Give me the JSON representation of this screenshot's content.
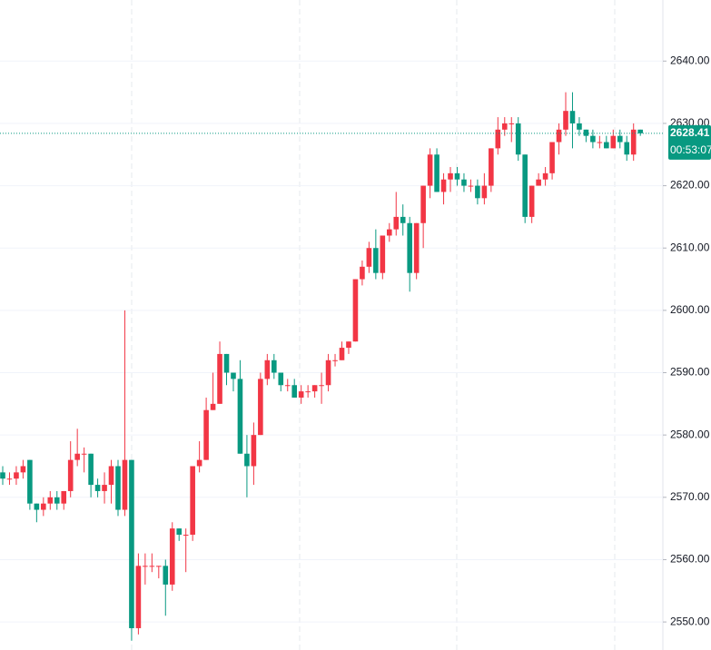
{
  "chart_data": {
    "type": "candlestick",
    "up_color": "#f23645",
    "down_color": "#089981",
    "ylim": [
      2545.5,
      2649.8
    ],
    "yticks": [
      {
        "value": 2550,
        "label": "2550.00"
      },
      {
        "value": 2560,
        "label": "2560.00"
      },
      {
        "value": 2570,
        "label": "2570.00"
      },
      {
        "value": 2580,
        "label": "2580.00"
      },
      {
        "value": 2590,
        "label": "2590.00"
      },
      {
        "value": 2600,
        "label": "2600.00"
      },
      {
        "value": 2610,
        "label": "2610.00"
      },
      {
        "value": 2620,
        "label": "2620.00"
      },
      {
        "value": 2630,
        "label": "2630.00"
      },
      {
        "value": 2640,
        "label": "2640.00"
      }
    ],
    "grid": true,
    "last_price": 2628.41,
    "countdown": "00:53:07",
    "open": [
      2574,
      2573,
      2573,
      2574,
      2576,
      2569,
      2568,
      2569,
      2570,
      2569,
      2571,
      2576,
      2577,
      2577,
      2572,
      2571,
      2572,
      2575,
      2568,
      2576,
      2549,
      2559,
      2559,
      2559,
      2559,
      2556,
      2565,
      2564,
      2564,
      2575,
      2576,
      2584,
      2585,
      2593,
      2590,
      2589,
      2577,
      2575,
      2580,
      2589,
      2592,
      2590,
      2588,
      2588,
      2586,
      2587,
      2587,
      2588,
      2588,
      2592,
      2592,
      2594,
      2595,
      2605,
      2607,
      2610,
      2606,
      2612,
      2613,
      2615,
      2614,
      2606,
      2614,
      2620,
      2625,
      2619,
      2621,
      2622,
      2621,
      2620,
      2620,
      2618,
      2620,
      2626,
      2629,
      2630,
      2630,
      2625,
      2615,
      2620,
      2621,
      2622,
      2627,
      2629,
      2632,
      2630,
      2629,
      2628,
      2627,
      2627,
      2626,
      2628,
      2627,
      2625,
      2629
    ],
    "high": [
      2575,
      2574,
      2575,
      2576,
      2576,
      2569,
      2570,
      2571,
      2571,
      2571,
      2579,
      2581,
      2578,
      2577,
      2573,
      2574,
      2576,
      2576,
      2600,
      2576,
      2561,
      2561,
      2561,
      2559,
      2560,
      2566,
      2565,
      2565,
      2575,
      2579,
      2586,
      2590,
      2595,
      2593,
      2590,
      2592,
      2580,
      2582,
      2590,
      2593,
      2593,
      2590,
      2589,
      2589,
      2588,
      2588,
      2588,
      2590,
      2593,
      2593,
      2595,
      2595,
      2605,
      2608,
      2611,
      2613,
      2612,
      2614,
      2619,
      2617,
      2615,
      2614,
      2620,
      2626,
      2626,
      2622,
      2623,
      2623,
      2622,
      2621,
      2621,
      2622,
      2626,
      2631,
      2631,
      2631,
      2631,
      2625,
      2620,
      2622,
      2623,
      2627,
      2630,
      2635,
      2635,
      2631,
      2629,
      2629,
      2628,
      2628,
      2629,
      2629,
      2628,
      2630,
      2629
    ],
    "low": [
      2572,
      2572,
      2572,
      2573,
      2568,
      2566,
      2567,
      2568,
      2568,
      2568,
      2570,
      2575,
      2574,
      2570,
      2570,
      2569,
      2569,
      2567,
      2567,
      2547,
      2548,
      2556,
      2558,
      2557,
      2551,
      2555,
      2563,
      2558,
      2563,
      2574,
      2576,
      2584,
      2585,
      2588,
      2587,
      2577,
      2570,
      2572,
      2580,
      2588,
      2589,
      2587,
      2587,
      2586,
      2585,
      2586,
      2586,
      2585,
      2587,
      2591,
      2592,
      2593,
      2595,
      2604,
      2606,
      2605,
      2605,
      2611,
      2612,
      2612,
      2603,
      2605,
      2610,
      2618,
      2619,
      2617,
      2619,
      2620,
      2619,
      2619,
      2617,
      2617,
      2619,
      2625,
      2628,
      2627,
      2624,
      2614,
      2614,
      2620,
      2620,
      2621,
      2625,
      2628,
      2626,
      2628,
      2627,
      2626,
      2626,
      2626,
      2626,
      2626,
      2624,
      2624,
      2628
    ],
    "close": [
      2573,
      2573,
      2574,
      2575,
      2569,
      2568,
      2569,
      2570,
      2569,
      2571,
      2576,
      2577,
      2577,
      2572,
      2571,
      2572,
      2575,
      2568,
      2576,
      2549,
      2559,
      2559,
      2559,
      2559,
      2556,
      2565,
      2564,
      2564,
      2575,
      2576,
      2584,
      2585,
      2593,
      2590,
      2589,
      2577,
      2575,
      2580,
      2589,
      2592,
      2590,
      2588,
      2588,
      2586,
      2587,
      2587,
      2588,
      2588,
      2592,
      2592,
      2594,
      2595,
      2605,
      2607,
      2610,
      2606,
      2612,
      2613,
      2615,
      2614,
      2606,
      2614,
      2620,
      2625,
      2619,
      2621,
      2622,
      2621,
      2620,
      2620,
      2618,
      2620,
      2626,
      2629,
      2630,
      2630,
      2625,
      2615,
      2620,
      2621,
      2622,
      2627,
      2629,
      2632,
      2630,
      2629,
      2628,
      2627,
      2627,
      2626,
      2628,
      2627,
      2625,
      2629,
      2628.41
    ]
  }
}
